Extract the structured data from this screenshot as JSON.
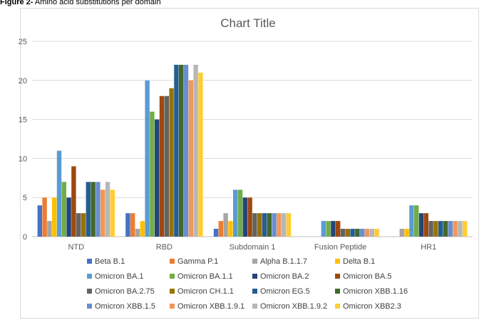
{
  "caption": {
    "prefix": "Figure 2-",
    "text": " Amino acid substitutions per domain"
  },
  "chart_data": {
    "type": "bar",
    "title": "Chart Title",
    "xlabel": "",
    "ylabel": "",
    "ylim": [
      0,
      25
    ],
    "yticks": [
      0,
      5,
      10,
      15,
      20,
      25
    ],
    "grid": true,
    "legend_position": "bottom",
    "categories": [
      "NTD",
      "RBD",
      "Subdomain 1",
      "Fusion Peptide",
      "HR1"
    ],
    "series": [
      {
        "name": "Beta B.1",
        "color": "#4472C4",
        "values": [
          4,
          3,
          1,
          0,
          0
        ]
      },
      {
        "name": "Gamma P.1",
        "color": "#ED7D31",
        "values": [
          5,
          3,
          2,
          0,
          0
        ]
      },
      {
        "name": "Alpha B.1.1.7",
        "color": "#A5A5A5",
        "values": [
          2,
          1,
          3,
          0,
          1
        ]
      },
      {
        "name": "Delta B.1",
        "color": "#FFC000",
        "values": [
          5,
          2,
          2,
          0,
          1
        ]
      },
      {
        "name": "Omicron BA.1",
        "color": "#5B9BD5",
        "values": [
          11,
          20,
          6,
          2,
          4
        ]
      },
      {
        "name": "Omicron BA.1.1",
        "color": "#70AD47",
        "values": [
          7,
          16,
          6,
          2,
          4
        ]
      },
      {
        "name": "Omicron BA.2",
        "color": "#264478",
        "values": [
          5,
          15,
          5,
          2,
          3
        ]
      },
      {
        "name": "Omicron BA.5",
        "color": "#9E480E",
        "values": [
          9,
          18,
          5,
          2,
          3
        ]
      },
      {
        "name": "Omicron BA.2.75",
        "color": "#636363",
        "values": [
          3,
          18,
          3,
          1,
          2
        ]
      },
      {
        "name": "Omicron CH.1.1",
        "color": "#997300",
        "values": [
          3,
          19,
          3,
          1,
          2
        ]
      },
      {
        "name": "Omicron EG.5",
        "color": "#255E91",
        "values": [
          7,
          22,
          3,
          1,
          2
        ]
      },
      {
        "name": "Omicron XBB.1.16",
        "color": "#43682B",
        "values": [
          7,
          22,
          3,
          1,
          2
        ]
      },
      {
        "name": "Omicron XBB.1.5",
        "color": "#698ED0",
        "values": [
          7,
          22,
          3,
          1,
          2
        ]
      },
      {
        "name": "Omicron XBB.1.9.1",
        "color": "#F1975A",
        "values": [
          6,
          20,
          3,
          1,
          2
        ]
      },
      {
        "name": "Omicron XBB.1.9.2",
        "color": "#B7B7B7",
        "values": [
          7,
          22,
          3,
          1,
          2
        ]
      },
      {
        "name": "Omicron XBB2.3",
        "color": "#FFCD33",
        "values": [
          6,
          21,
          3,
          1,
          2
        ]
      }
    ]
  }
}
